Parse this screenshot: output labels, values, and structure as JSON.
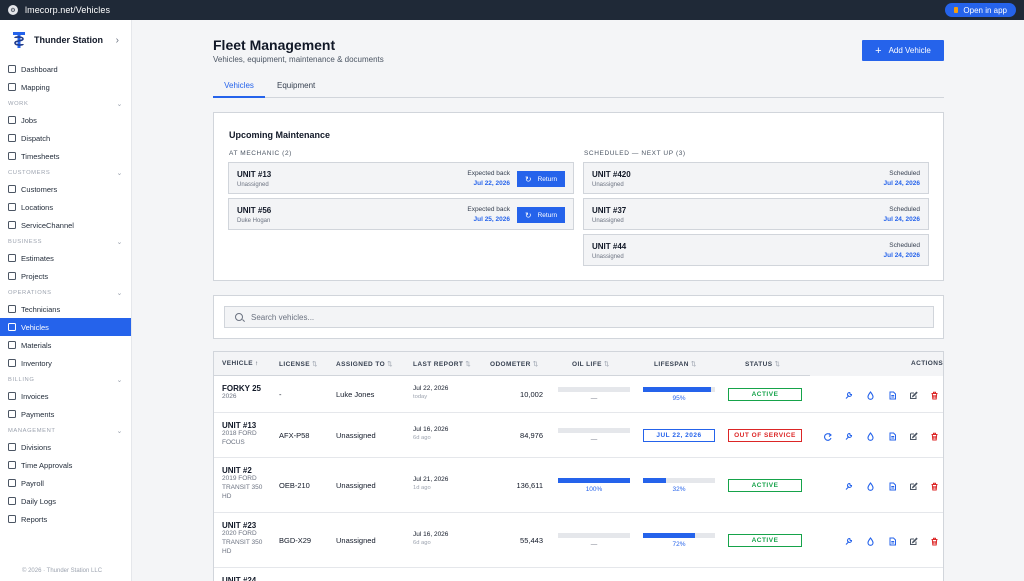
{
  "browser": {
    "url": "lmecorp.net/Vehicles",
    "open_in_app": "Open in app"
  },
  "brand": {
    "name": "Thunder Station"
  },
  "sidebar": {
    "items": [
      {
        "type": "item",
        "label": "Dashboard",
        "name": "dashboard"
      },
      {
        "type": "item",
        "label": "Mapping",
        "name": "mapping"
      },
      {
        "type": "section",
        "label": "WORK"
      },
      {
        "type": "item",
        "label": "Jobs",
        "name": "jobs"
      },
      {
        "type": "item",
        "label": "Dispatch",
        "name": "dispatch"
      },
      {
        "type": "item",
        "label": "Timesheets",
        "name": "timesheets"
      },
      {
        "type": "section",
        "label": "CUSTOMERS"
      },
      {
        "type": "item",
        "label": "Customers",
        "name": "customers"
      },
      {
        "type": "item",
        "label": "Locations",
        "name": "locations"
      },
      {
        "type": "item",
        "label": "ServiceChannel",
        "name": "servicechannel"
      },
      {
        "type": "section",
        "label": "BUSINESS"
      },
      {
        "type": "item",
        "label": "Estimates",
        "name": "estimates"
      },
      {
        "type": "item",
        "label": "Projects",
        "name": "projects"
      },
      {
        "type": "section",
        "label": "OPERATIONS"
      },
      {
        "type": "item",
        "label": "Technicians",
        "name": "technicians"
      },
      {
        "type": "item",
        "label": "Vehicles",
        "name": "vehicles",
        "active": true
      },
      {
        "type": "item",
        "label": "Materials",
        "name": "materials"
      },
      {
        "type": "item",
        "label": "Inventory",
        "name": "inventory"
      },
      {
        "type": "section",
        "label": "BILLING"
      },
      {
        "type": "item",
        "label": "Invoices",
        "name": "invoices"
      },
      {
        "type": "item",
        "label": "Payments",
        "name": "payments"
      },
      {
        "type": "section",
        "label": "MANAGEMENT"
      },
      {
        "type": "item",
        "label": "Divisions",
        "name": "divisions"
      },
      {
        "type": "item",
        "label": "Time Approvals",
        "name": "time-approvals"
      },
      {
        "type": "item",
        "label": "Payroll",
        "name": "payroll"
      },
      {
        "type": "item",
        "label": "Daily Logs",
        "name": "daily-logs"
      },
      {
        "type": "item",
        "label": "Reports",
        "name": "reports"
      }
    ],
    "copyright": "© 2026 · Thunder Station LLC"
  },
  "header": {
    "title": "Fleet Management",
    "subtitle": "Vehicles, equipment, maintenance & documents",
    "add_button": "Add Vehicle"
  },
  "tabs": [
    {
      "label": "Vehicles",
      "active": true
    },
    {
      "label": "Equipment",
      "active": false
    }
  ],
  "maintenance": {
    "title": "Upcoming Maintenance",
    "at_mechanic_label": "AT MECHANIC (2)",
    "scheduled_label": "SCHEDULED — NEXT UP (3)",
    "at_mechanic": [
      {
        "unit": "UNIT #13",
        "who": "Unassigned",
        "label": "Expected back",
        "date": "Jul 22, 2026",
        "action": "Return"
      },
      {
        "unit": "UNIT #56",
        "who": "Duke Hogan",
        "label": "Expected back",
        "date": "Jul 25, 2026",
        "action": "Return"
      }
    ],
    "scheduled": [
      {
        "unit": "UNIT #420",
        "who": "Unassigned",
        "label": "Scheduled",
        "date": "Jul 24, 2026"
      },
      {
        "unit": "UNIT #37",
        "who": "Unassigned",
        "label": "Scheduled",
        "date": "Jul 24, 2026"
      },
      {
        "unit": "UNIT #44",
        "who": "Unassigned",
        "label": "Scheduled",
        "date": "Jul 24, 2026"
      }
    ]
  },
  "search": {
    "placeholder": "Search vehicles..."
  },
  "table": {
    "columns": {
      "vehicle": "VEHICLE",
      "license": "LICENSE",
      "assigned": "ASSIGNED TO",
      "last_report": "LAST REPORT",
      "odometer": "ODOMETER",
      "oil_life": "OIL LIFE",
      "lifespan": "LIFESPAN",
      "status": "STATUS",
      "actions": "ACTIONS"
    },
    "rows": [
      {
        "name": "FORKY 25",
        "sub": "2026",
        "license": "-",
        "assigned": "Luke Jones",
        "report_date": "Jul 22, 2026",
        "report_ago": "today",
        "odometer": "10,002",
        "oil_pct": null,
        "oil_label": "—",
        "lifespan_pct": 0.95,
        "lifespan_label": "95%",
        "lifespan_date": null,
        "status": "ACTIVE",
        "status_kind": "active",
        "has_return": false
      },
      {
        "name": "UNIT #13",
        "sub": "2018 FORD FOCUS",
        "license": "AFX-P58",
        "assigned": "Unassigned",
        "report_date": "Jul 16, 2026",
        "report_ago": "6d ago",
        "odometer": "84,976",
        "oil_pct": null,
        "oil_label": "—",
        "lifespan_pct": null,
        "lifespan_label": null,
        "lifespan_date": "JUL 22, 2026",
        "status": "OUT OF SERVICE",
        "status_kind": "oos",
        "has_return": true
      },
      {
        "name": "UNIT #2",
        "sub": "2019 FORD TRANSIT 350 HD",
        "license": "OEB-210",
        "assigned": "Unassigned",
        "report_date": "Jul 21, 2026",
        "report_ago": "1d ago",
        "odometer": "136,611",
        "oil_pct": 1.0,
        "oil_label": "100%",
        "lifespan_pct": 0.32,
        "lifespan_label": "32%",
        "lifespan_date": null,
        "status": "ACTIVE",
        "status_kind": "active",
        "has_return": false
      },
      {
        "name": "UNIT #23",
        "sub": "2020 FORD TRANSIT 350 HD",
        "license": "BGD-X29",
        "assigned": "Unassigned",
        "report_date": "Jul 16, 2026",
        "report_ago": "6d ago",
        "odometer": "55,443",
        "oil_pct": null,
        "oil_label": "—",
        "lifespan_pct": 0.72,
        "lifespan_label": "72%",
        "lifespan_date": null,
        "status": "ACTIVE",
        "status_kind": "active",
        "has_return": false
      },
      {
        "name": "UNIT #24",
        "sub": "",
        "license": "",
        "assigned": "",
        "report_date": "",
        "report_ago": "",
        "odometer": "",
        "oil_pct": null,
        "oil_label": "",
        "lifespan_pct": null,
        "lifespan_label": null,
        "lifespan_date": null,
        "status": "",
        "status_kind": "",
        "has_return": false
      }
    ]
  },
  "colors": {
    "accent": "#2563eb",
    "active": "#16a34a",
    "danger": "#dc2626"
  },
  "icons": [
    "return-icon",
    "wrench-icon",
    "droplet-icon",
    "document-icon",
    "edit-icon",
    "trash-icon"
  ]
}
